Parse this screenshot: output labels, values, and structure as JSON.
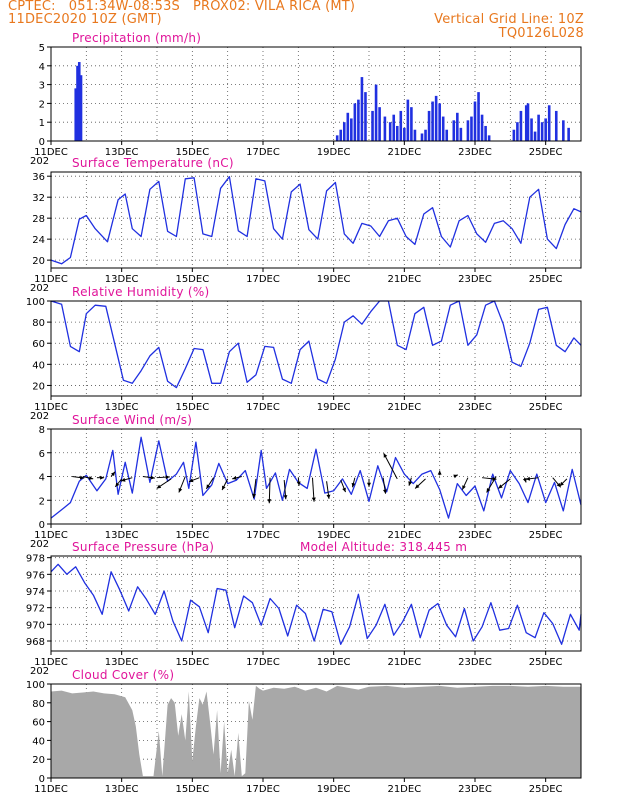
{
  "header": {
    "left_line1": "CPTEC:   051:34W-08:53S   PROX02: VILA RICA (MT)",
    "left_line2": "11DEC2020 10Z (GMT)",
    "right_line1": "Vertical Grid Line: 10Z",
    "right_line2": "TQ0126L028"
  },
  "x_axis": {
    "start_day": 11,
    "end_day": 26,
    "tick_labels": [
      "11DEC",
      "13DEC",
      "15DEC",
      "17DEC",
      "19DEC",
      "21DEC",
      "23DEC",
      "25DEC"
    ],
    "tick_days": [
      11,
      13,
      15,
      17,
      19,
      21,
      23,
      25
    ],
    "year_fragment": "202"
  },
  "colors": {
    "line": "#2030e0",
    "bar": "#2030e0",
    "cloud": "#a8a8a8",
    "title": "#e0149a",
    "header": "#e8781e",
    "grid": "#555555",
    "arrow": "#000000"
  },
  "chart_data": [
    {
      "type": "bar",
      "title": "Precipitation (mm/h)",
      "ylim": [
        0,
        5
      ],
      "yticks": [
        0,
        1,
        2,
        3,
        4,
        5
      ],
      "grid": true,
      "x": [
        11.7,
        11.75,
        11.8,
        11.85,
        19.1,
        19.2,
        19.3,
        19.4,
        19.5,
        19.6,
        19.7,
        19.8,
        19.9,
        20.1,
        20.2,
        20.3,
        20.45,
        20.6,
        20.7,
        20.8,
        20.9,
        21.0,
        21.1,
        21.2,
        21.3,
        21.5,
        21.6,
        21.7,
        21.8,
        21.9,
        22.0,
        22.1,
        22.2,
        22.4,
        22.5,
        22.6,
        22.8,
        22.9,
        23.0,
        23.1,
        23.2,
        23.3,
        23.4,
        24.1,
        24.2,
        24.3,
        24.45,
        24.5,
        24.6,
        24.7,
        24.8,
        24.9,
        25.0,
        25.1,
        25.3,
        25.5,
        25.65
      ],
      "values": [
        2.8,
        4.0,
        4.2,
        3.5,
        0.3,
        0.6,
        1.0,
        1.5,
        1.2,
        2.0,
        2.2,
        3.4,
        2.6,
        1.6,
        3.0,
        1.8,
        1.3,
        1.0,
        1.4,
        0.8,
        1.6,
        0.7,
        2.2,
        1.8,
        0.6,
        0.4,
        0.6,
        1.6,
        2.1,
        2.4,
        2.0,
        1.3,
        0.6,
        1.1,
        1.5,
        0.7,
        1.1,
        1.3,
        2.1,
        2.6,
        1.4,
        0.8,
        0.3,
        0.6,
        1.0,
        1.6,
        1.9,
        2.0,
        1.2,
        0.5,
        1.4,
        1.0,
        1.2,
        1.9,
        1.6,
        1.1,
        0.7
      ]
    },
    {
      "type": "line",
      "title": "Surface Temperature (nC)",
      "ylim": [
        18.5,
        36.8
      ],
      "yticks": [
        20,
        24,
        28,
        32,
        36
      ],
      "grid": true,
      "x": [
        11.0,
        11.3,
        11.55,
        11.8,
        12.0,
        12.25,
        12.6,
        12.9,
        13.1,
        13.3,
        13.55,
        13.8,
        14.05,
        14.3,
        14.55,
        14.8,
        15.05,
        15.3,
        15.55,
        15.8,
        16.05,
        16.3,
        16.55,
        16.8,
        17.05,
        17.3,
        17.55,
        17.8,
        18.05,
        18.3,
        18.55,
        18.8,
        19.05,
        19.3,
        19.55,
        19.8,
        20.05,
        20.3,
        20.55,
        20.8,
        21.05,
        21.3,
        21.55,
        21.8,
        22.05,
        22.3,
        22.55,
        22.8,
        23.05,
        23.3,
        23.55,
        23.8,
        24.05,
        24.3,
        24.55,
        24.8,
        25.05,
        25.3,
        25.55,
        25.8,
        26.0
      ],
      "values": [
        20.0,
        19.3,
        20.5,
        27.8,
        28.5,
        26.0,
        23.5,
        31.5,
        32.6,
        26.0,
        24.5,
        33.5,
        35.0,
        25.5,
        24.5,
        35.5,
        35.7,
        25.0,
        24.5,
        33.7,
        35.9,
        25.6,
        24.5,
        35.5,
        35.1,
        26.0,
        24.0,
        33.0,
        34.5,
        25.8,
        24.0,
        33.2,
        34.8,
        25.0,
        23.2,
        27.0,
        26.5,
        24.5,
        27.5,
        28.0,
        24.5,
        23.0,
        28.8,
        30.0,
        24.5,
        22.5,
        27.5,
        28.5,
        25.0,
        23.4,
        27.0,
        27.5,
        26.0,
        23.2,
        32.0,
        33.5,
        24.0,
        22.2,
        26.8,
        29.8,
        29.2
      ]
    },
    {
      "type": "line",
      "title": "Relative Humidity (%)",
      "ylim": [
        10,
        100
      ],
      "yticks": [
        20,
        40,
        60,
        80,
        100
      ],
      "grid": true,
      "x": [
        11.0,
        11.3,
        11.55,
        11.8,
        12.0,
        12.25,
        12.55,
        12.8,
        13.05,
        13.3,
        13.55,
        13.8,
        14.05,
        14.3,
        14.55,
        14.8,
        15.05,
        15.3,
        15.55,
        15.8,
        16.05,
        16.3,
        16.55,
        16.8,
        17.05,
        17.3,
        17.55,
        17.8,
        18.05,
        18.3,
        18.55,
        18.8,
        19.05,
        19.3,
        19.55,
        19.8,
        20.05,
        20.3,
        20.55,
        20.8,
        21.05,
        21.3,
        21.55,
        21.8,
        22.05,
        22.3,
        22.55,
        22.8,
        23.05,
        23.3,
        23.55,
        23.8,
        24.05,
        24.3,
        24.55,
        24.8,
        25.05,
        25.3,
        25.55,
        25.8,
        26.0
      ],
      "values": [
        100,
        97,
        57,
        52,
        88,
        96,
        95,
        60,
        25,
        22,
        34,
        48,
        56,
        24,
        18,
        36,
        55,
        54,
        22,
        22,
        52,
        60,
        23,
        30,
        57,
        56,
        26,
        22,
        54,
        62,
        26,
        22,
        45,
        80,
        86,
        78,
        90,
        100,
        100,
        58,
        54,
        88,
        94,
        58,
        62,
        96,
        100,
        58,
        68,
        96,
        100,
        78,
        42,
        38,
        60,
        92,
        94,
        58,
        52,
        65,
        58
      ]
    },
    {
      "type": "line",
      "title": "Surface Wind (m/s)",
      "ylim": [
        0,
        8
      ],
      "yticks": [
        0,
        2,
        4,
        6,
        8
      ],
      "grid": true,
      "x": [
        11.0,
        11.3,
        11.55,
        11.8,
        12.0,
        12.3,
        12.55,
        12.75,
        12.9,
        13.1,
        13.3,
        13.55,
        13.8,
        14.05,
        14.3,
        14.55,
        14.75,
        14.9,
        15.1,
        15.3,
        15.55,
        15.75,
        16.0,
        16.25,
        16.5,
        16.75,
        16.95,
        17.1,
        17.35,
        17.55,
        17.75,
        18.0,
        18.25,
        18.5,
        18.75,
        19.0,
        19.25,
        19.5,
        19.75,
        20.0,
        20.25,
        20.5,
        20.75,
        21.0,
        21.25,
        21.5,
        21.75,
        22.0,
        22.25,
        22.5,
        22.75,
        23.0,
        23.25,
        23.5,
        23.75,
        24.0,
        24.25,
        24.5,
        24.75,
        25.0,
        25.25,
        25.5,
        25.75,
        26.0
      ],
      "values": [
        0.5,
        1.2,
        1.8,
        3.6,
        4.1,
        2.8,
        3.8,
        6.2,
        2.5,
        5.2,
        2.6,
        7.3,
        3.5,
        7.0,
        3.6,
        4.2,
        5.2,
        3.0,
        6.9,
        2.4,
        3.3,
        5.1,
        3.4,
        3.7,
        4.5,
        2.1,
        6.2,
        3.0,
        4.3,
        2.0,
        4.6,
        3.5,
        3.0,
        6.3,
        2.6,
        2.8,
        3.8,
        2.5,
        4.5,
        1.9,
        4.9,
        2.7,
        5.6,
        4.2,
        3.4,
        4.2,
        4.5,
        2.9,
        0.5,
        3.4,
        2.4,
        3.2,
        1.1,
        4.2,
        2.2,
        4.5,
        3.4,
        1.8,
        4.2,
        1.8,
        3.5,
        1.1,
        4.6,
        1.6
      ],
      "arrows_x": [
        11.6,
        11.9,
        12.3,
        12.7,
        13.0,
        13.3,
        13.6,
        14.0,
        14.4,
        14.8,
        15.2,
        15.6,
        16.0,
        16.4,
        16.8,
        17.2,
        17.6,
        18.0,
        18.4,
        18.8,
        19.2,
        19.6,
        20.0,
        20.4,
        20.8,
        21.2,
        21.6,
        22.0,
        22.4,
        22.8,
        23.2,
        23.6,
        24.0,
        24.4,
        24.8,
        25.2,
        25.6
      ],
      "arrows_y": [
        4.0,
        4.0,
        3.9,
        4.0,
        3.8,
        3.9,
        4.0,
        3.9,
        3.8,
        4.0,
        3.9,
        3.9,
        3.8,
        4.0,
        3.8,
        3.9,
        3.7,
        3.9,
        3.9,
        3.6,
        3.7,
        3.9,
        3.8,
        3.9,
        3.8,
        3.9,
        3.8,
        4.1,
        4.0,
        3.9,
        3.9,
        4.0,
        3.8,
        3.9,
        3.9,
        3.9,
        3.8
      ],
      "arrows_u": [
        1.5,
        1.3,
        0.9,
        0.5,
        -0.8,
        -1.4,
        1.5,
        1.6,
        -1.8,
        -0.8,
        -1.3,
        -0.9,
        -0.7,
        -1.2,
        -0.3,
        -0.1,
        0.2,
        0.1,
        0.2,
        0.3,
        0.6,
        -0.3,
        0.0,
        0.3,
        -1.7,
        -0.3,
        -1.3,
        0.0,
        0.5,
        -0.7,
        1.8,
        -1.2,
        -1.5,
        0.2,
        -1.6,
        1.0,
        -0.9
      ],
      "arrows_v": [
        -0.2,
        -0.3,
        0.0,
        0.6,
        -1.0,
        -0.4,
        -0.2,
        0.1,
        -1.2,
        -2.0,
        -0.5,
        -1.4,
        -1.4,
        -0.3,
        -2.4,
        -3.2,
        -2.4,
        -1.0,
        -3.0,
        -2.2,
        -1.5,
        -1.2,
        -1.0,
        -2.0,
        3.2,
        -1.0,
        -1.2,
        0.6,
        0.2,
        -1.5,
        -0.2,
        -2.0,
        -1.2,
        -0.6,
        -0.2,
        -1.2,
        -0.9
      ]
    },
    {
      "type": "line",
      "title": "Surface Pressure (hPa)",
      "annotation": "Model Altitude: 318.445  m",
      "ylim": [
        966.8,
        978.2
      ],
      "yticks": [
        968,
        970,
        972,
        974,
        976,
        978
      ],
      "grid": true,
      "x": [
        11.0,
        11.2,
        11.45,
        11.7,
        11.95,
        12.2,
        12.45,
        12.7,
        12.95,
        13.2,
        13.45,
        13.7,
        13.95,
        14.2,
        14.45,
        14.7,
        14.95,
        15.2,
        15.45,
        15.7,
        15.95,
        16.2,
        16.45,
        16.7,
        16.95,
        17.2,
        17.45,
        17.7,
        17.95,
        18.2,
        18.45,
        18.7,
        18.95,
        19.2,
        19.45,
        19.7,
        19.95,
        20.2,
        20.45,
        20.7,
        20.95,
        21.2,
        21.45,
        21.7,
        21.95,
        22.2,
        22.45,
        22.7,
        22.95,
        23.2,
        23.45,
        23.7,
        23.95,
        24.2,
        24.45,
        24.7,
        24.95,
        25.2,
        25.45,
        25.7,
        25.95,
        26.0
      ],
      "values": [
        976.3,
        977.2,
        976.0,
        976.9,
        975.0,
        973.5,
        971.2,
        976.3,
        974.1,
        971.6,
        974.5,
        973.0,
        971.2,
        974.0,
        970.4,
        968.0,
        972.9,
        972.1,
        969.0,
        974.3,
        974.1,
        969.6,
        973.4,
        972.6,
        969.9,
        973.1,
        971.9,
        968.6,
        972.3,
        971.3,
        968.0,
        971.8,
        971.5,
        967.6,
        969.7,
        973.6,
        968.3,
        969.9,
        972.4,
        968.7,
        970.3,
        972.4,
        968.4,
        971.7,
        972.5,
        969.9,
        968.5,
        971.9,
        968.0,
        969.7,
        972.6,
        969.3,
        969.5,
        972.3,
        969.0,
        968.4,
        971.4,
        970.1,
        967.6,
        971.2,
        969.3,
        971.2
      ]
    },
    {
      "type": "area",
      "title": "Cloud Cover (%)",
      "ylim": [
        0,
        100
      ],
      "yticks": [
        0,
        20,
        40,
        60,
        80,
        100
      ],
      "grid": true,
      "x": [
        11.0,
        11.3,
        11.6,
        11.9,
        12.2,
        12.5,
        12.8,
        13.1,
        13.3,
        13.4,
        13.5,
        13.6,
        13.7,
        13.8,
        13.9,
        14.05,
        14.15,
        14.3,
        14.4,
        14.5,
        14.6,
        14.7,
        14.8,
        14.9,
        15.0,
        15.1,
        15.2,
        15.3,
        15.4,
        15.5,
        15.6,
        15.7,
        15.8,
        15.9,
        16.0,
        16.1,
        16.2,
        16.3,
        16.4,
        16.5,
        16.6,
        16.7,
        16.8,
        16.9,
        17.0,
        17.3,
        17.6,
        17.9,
        18.2,
        18.5,
        18.8,
        19.1,
        19.4,
        19.7,
        20.0,
        20.5,
        21.0,
        21.5,
        22.0,
        22.5,
        23.0,
        23.5,
        24.0,
        24.5,
        25.0,
        25.5,
        26.0
      ],
      "values": [
        92,
        93,
        90,
        91,
        92,
        90,
        89,
        86,
        72,
        55,
        25,
        2,
        2,
        2,
        2,
        50,
        2,
        78,
        85,
        80,
        45,
        68,
        40,
        92,
        18,
        55,
        85,
        78,
        92,
        60,
        25,
        72,
        5,
        60,
        5,
        30,
        2,
        48,
        2,
        5,
        82,
        62,
        98,
        95,
        93,
        96,
        95,
        97,
        93,
        96,
        92,
        98,
        96,
        94,
        97,
        98,
        96,
        97,
        98,
        96,
        97,
        98,
        98,
        97,
        98,
        97,
        97
      ]
    }
  ]
}
